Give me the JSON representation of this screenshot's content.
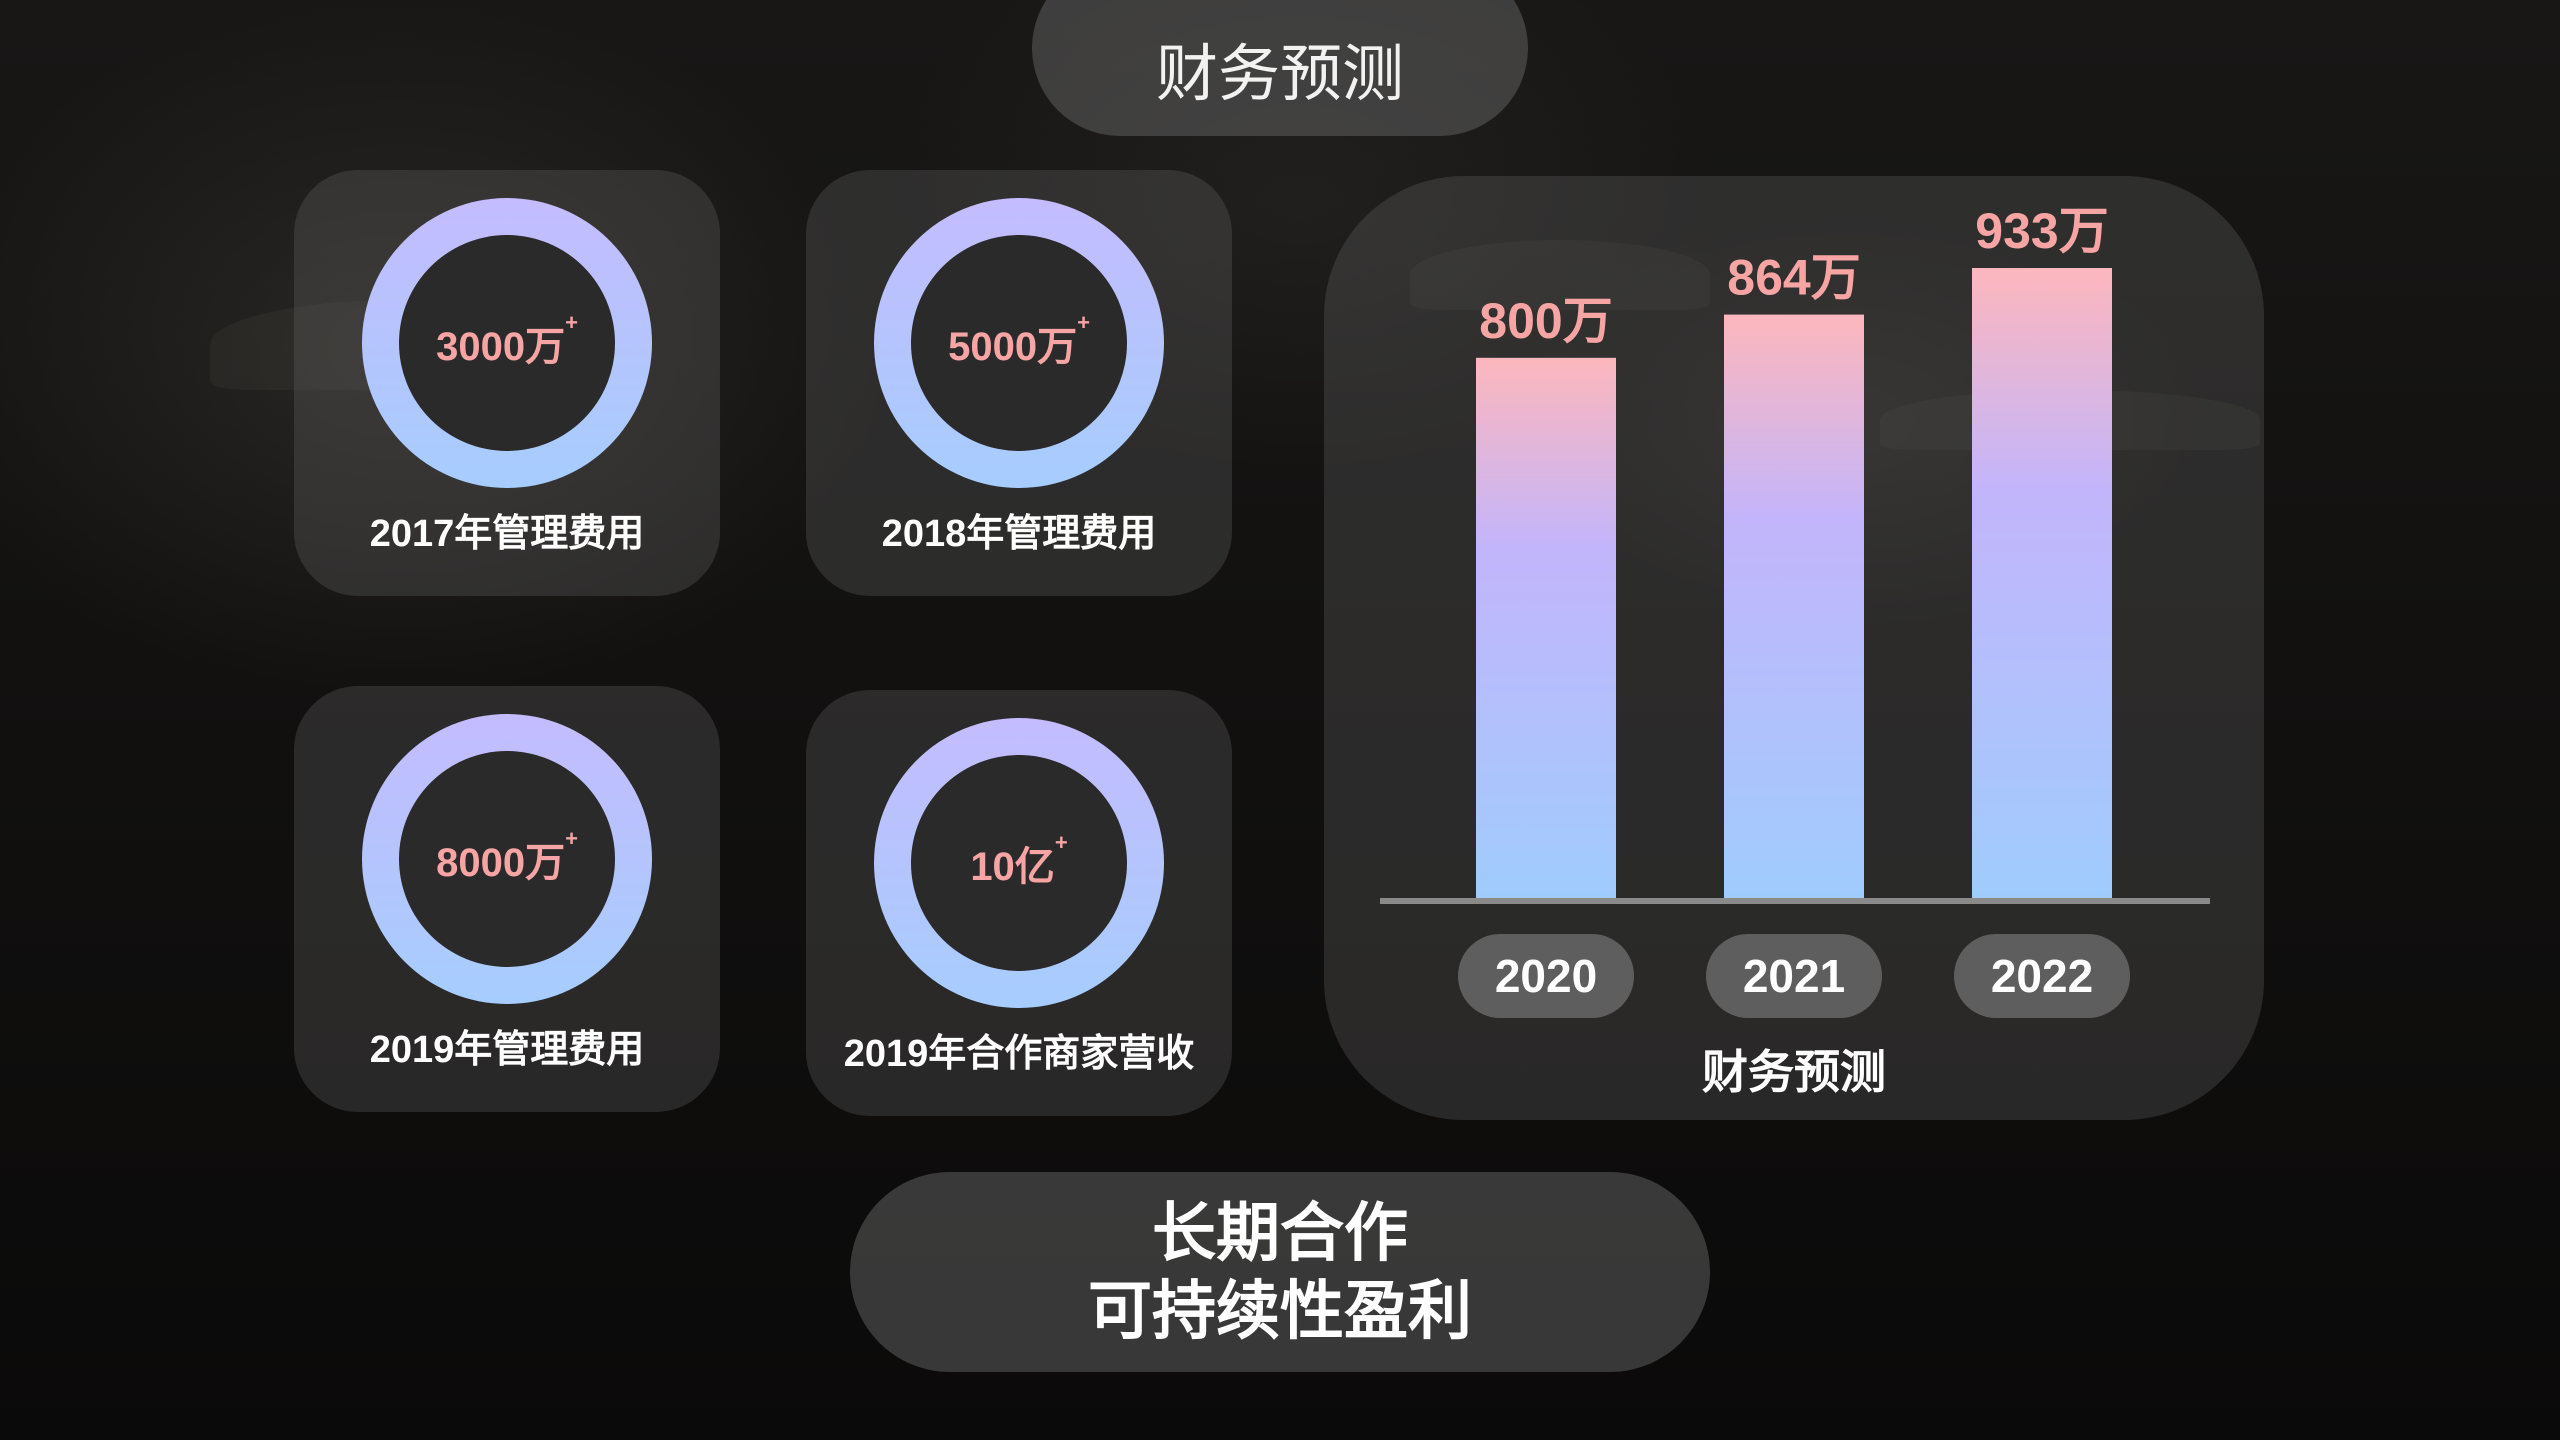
{
  "header": {
    "title": "财务预测"
  },
  "cards": [
    {
      "value": "3000万",
      "sup": "+",
      "label": "2017年管理费用"
    },
    {
      "value": "5000万",
      "sup": "+",
      "label": "2018年管理费用"
    },
    {
      "value": "8000万",
      "sup": "+",
      "label": "2019年管理费用"
    },
    {
      "value": "10亿",
      "sup": "+",
      "label": "2019年合作商家营收"
    }
  ],
  "chart_data": {
    "type": "bar",
    "categories": [
      "2020",
      "2021",
      "2022"
    ],
    "values": [
      800,
      864,
      933
    ],
    "value_labels": [
      "800万",
      "864万",
      "933万"
    ],
    "xlabel": "财务预测",
    "ylabel": "",
    "grid": false
  },
  "footer": {
    "line1": "长期合作",
    "line2": "可持续性盈利"
  },
  "colors": {
    "ring_top": "#c4bcff",
    "ring_bottom": "#a6cdfd",
    "accent_text": "#f7a4a4",
    "bar_top": "#fdb7bd",
    "bar_mid": "#c3b5fb",
    "bar_bottom": "#a0ccfd"
  }
}
